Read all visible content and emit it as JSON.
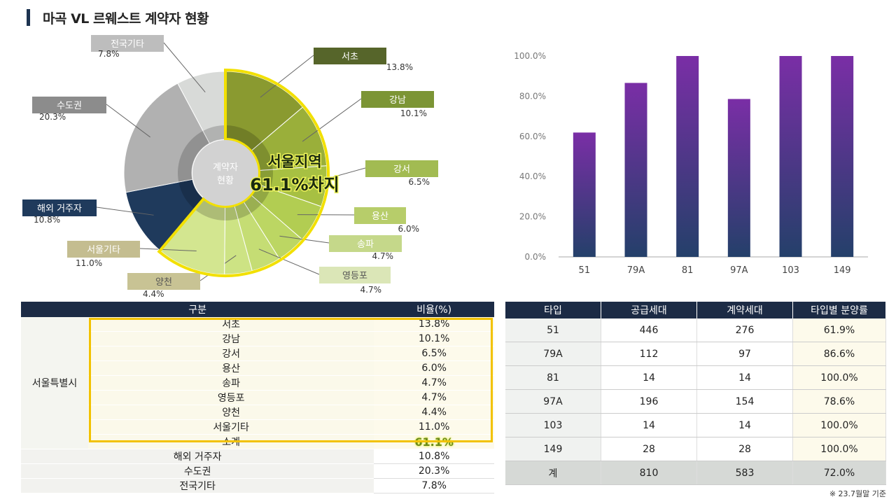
{
  "title": "마곡 VL 르웨스트 계약자 현황",
  "footnote": "※ 23.7월말 기준",
  "colors": {
    "navy": "#1c2b45",
    "highlight_border": "#f2e000",
    "bar_top": "#7a2ea6",
    "bar_bottom": "#24406a"
  },
  "chart_data": [
    {
      "type": "pie",
      "title": "계약자 현황 (donut)",
      "center_label_line1": "계약자",
      "center_label_line2": "현황",
      "highlight_line1": "서울지역",
      "highlight_line2": "61.1%차지",
      "slices": [
        {
          "name": "서초",
          "value": 13.8,
          "label": "13.8%",
          "color": "#8a9a30"
        },
        {
          "name": "강남",
          "value": 10.1,
          "label": "10.1%",
          "color": "#9aaf3a"
        },
        {
          "name": "강서",
          "value": 6.5,
          "label": "6.5%",
          "color": "#a7c042"
        },
        {
          "name": "용산",
          "value": 6.0,
          "label": "6.0%",
          "color": "#b2cd52"
        },
        {
          "name": "송파",
          "value": 4.7,
          "label": "4.7%",
          "color": "#bcd663"
        },
        {
          "name": "영등포",
          "value": 4.7,
          "label": "4.7%",
          "color": "#c5dd74"
        },
        {
          "name": "양천",
          "value": 4.4,
          "label": "4.4%",
          "color": "#cde384"
        },
        {
          "name": "서울기타",
          "value": 11.0,
          "label": "11.0%",
          "color": "#d3e690"
        },
        {
          "name": "해외 거주자",
          "value": 10.8,
          "label": "10.8%",
          "color": "#1f3a5c"
        },
        {
          "name": "수도권",
          "value": 20.3,
          "label": "20.3%",
          "color": "#b1b1b1"
        },
        {
          "name": "전국기타",
          "value": 7.8,
          "label": "7.8%",
          "color": "#d8dad8"
        }
      ]
    },
    {
      "type": "bar",
      "title": "",
      "categories": [
        "51",
        "79A",
        "81",
        "97A",
        "103",
        "149"
      ],
      "values": [
        61.9,
        86.6,
        100.0,
        78.6,
        100.0,
        100.0
      ],
      "y_ticks": [
        "0.0%",
        "20.0%",
        "40.0%",
        "60.0%",
        "80.0%",
        "100.0%"
      ],
      "ylim": [
        0,
        100
      ],
      "xlabel": "",
      "ylabel": ""
    }
  ],
  "left_table": {
    "headers": [
      "구분",
      "비율(%)"
    ],
    "group_label": "서울특별시",
    "seoul_rows": [
      {
        "name": "서초",
        "value": "13.8%"
      },
      {
        "name": "강남",
        "value": "10.1%"
      },
      {
        "name": "강서",
        "value": "6.5%"
      },
      {
        "name": "용산",
        "value": "6.0%"
      },
      {
        "name": "송파",
        "value": "4.7%"
      },
      {
        "name": "영등포",
        "value": "4.7%"
      },
      {
        "name": "양천",
        "value": "4.4%"
      },
      {
        "name": "서울기타",
        "value": "11.0%"
      }
    ],
    "subtotal": {
      "name": "소계",
      "value": "61.1%"
    },
    "other_rows": [
      {
        "name": "해외 거주자",
        "value": "10.8%"
      },
      {
        "name": "수도권",
        "value": "20.3%"
      },
      {
        "name": "전국기타",
        "value": "7.8%"
      }
    ]
  },
  "right_table": {
    "headers": [
      "타입",
      "공급세대",
      "계약세대",
      "타입별 분양률"
    ],
    "rows": [
      [
        "51",
        "446",
        "276",
        "61.9%"
      ],
      [
        "79A",
        "112",
        "97",
        "86.6%"
      ],
      [
        "81",
        "14",
        "14",
        "100.0%"
      ],
      [
        "97A",
        "196",
        "154",
        "78.6%"
      ],
      [
        "103",
        "14",
        "14",
        "100.0%"
      ],
      [
        "149",
        "28",
        "28",
        "100.0%"
      ]
    ],
    "total": [
      "계",
      "810",
      "583",
      "72.0%"
    ]
  }
}
